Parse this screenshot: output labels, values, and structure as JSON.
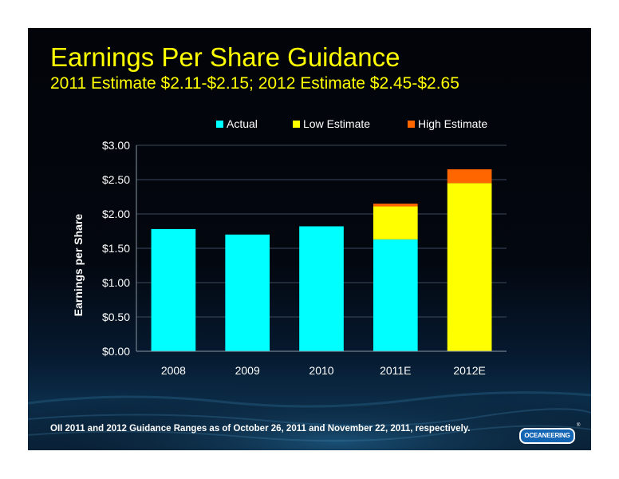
{
  "slide": {
    "title": "Earnings Per Share Guidance",
    "subtitle": "2011 Estimate $2.11-$2.15; 2012 Estimate $2.45-$2.65",
    "footnote": "OII 2011 and 2012 Guidance Ranges as of  October 26, 2011 and November 22, 2011, respectively.",
    "logo_text": "OCEANEERING",
    "logo_mark": "®"
  },
  "colors": {
    "title": "#ffff00",
    "actual": "#00ffff",
    "low_estimate": "#ffff00",
    "high_estimate": "#ff6600",
    "grid": "#3b4a5a",
    "text": "#ffffff"
  },
  "chart_data": {
    "type": "bar",
    "stacked": true,
    "categories": [
      "2008",
      "2009",
      "2010",
      "2011E",
      "2012E"
    ],
    "series": [
      {
        "name": "Actual",
        "color": "#00ffff",
        "values": [
          1.78,
          1.7,
          1.82,
          1.63,
          0
        ]
      },
      {
        "name": "Low Estimate",
        "color": "#ffff00",
        "values": [
          0,
          0,
          0,
          0.48,
          2.45
        ]
      },
      {
        "name": "High Estimate",
        "color": "#ff6600",
        "values": [
          0,
          0,
          0,
          0.04,
          0.2
        ]
      }
    ],
    "ylabel": "Earnings per Share",
    "ylim": [
      0,
      3
    ],
    "yticks": [
      0,
      0.5,
      1,
      1.5,
      2,
      2.5,
      3
    ],
    "ytick_labels": [
      "$0.00",
      "$0.50",
      "$1.00",
      "$1.50",
      "$2.00",
      "$2.50",
      "$3.00"
    ],
    "grid": true,
    "legend_position": "top"
  }
}
